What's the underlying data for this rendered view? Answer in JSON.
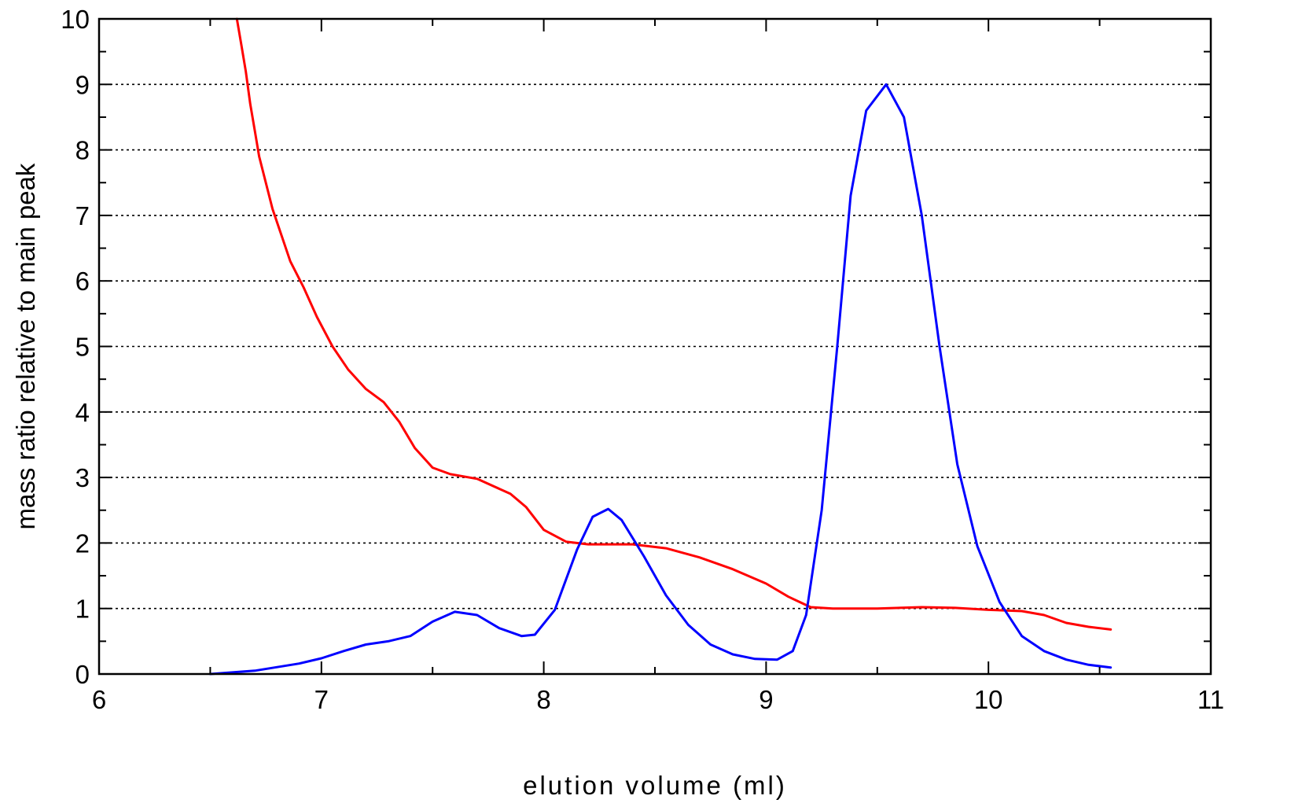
{
  "chart_data": {
    "type": "line",
    "title": "",
    "xlabel": "elution volume (ml)",
    "ylabel": "mass ratio relative to main peak",
    "xlim": [
      6,
      11
    ],
    "ylim": [
      0,
      10
    ],
    "xticks": [
      "6",
      "7",
      "8",
      "9",
      "10",
      "11"
    ],
    "yticks": [
      "0",
      "1",
      "2",
      "3",
      "4",
      "5",
      "6",
      "7",
      "8",
      "9",
      "10"
    ],
    "grid": "horizontal dotted",
    "legend": "none",
    "series": [
      {
        "color": "#ff0000",
        "points": [
          [
            6.62,
            10.0
          ],
          [
            6.64,
            9.6
          ],
          [
            6.66,
            9.2
          ],
          [
            6.68,
            8.7
          ],
          [
            6.7,
            8.3
          ],
          [
            6.72,
            7.9
          ],
          [
            6.75,
            7.5
          ],
          [
            6.78,
            7.1
          ],
          [
            6.82,
            6.7
          ],
          [
            6.86,
            6.3
          ],
          [
            6.92,
            5.9
          ],
          [
            6.98,
            5.45
          ],
          [
            7.05,
            5.0
          ],
          [
            7.12,
            4.65
          ],
          [
            7.2,
            4.35
          ],
          [
            7.28,
            4.15
          ],
          [
            7.35,
            3.85
          ],
          [
            7.42,
            3.45
          ],
          [
            7.5,
            3.15
          ],
          [
            7.58,
            3.05
          ],
          [
            7.7,
            2.98
          ],
          [
            7.85,
            2.75
          ],
          [
            7.92,
            2.55
          ],
          [
            8.0,
            2.2
          ],
          [
            8.1,
            2.02
          ],
          [
            8.2,
            1.98
          ],
          [
            8.4,
            1.98
          ],
          [
            8.55,
            1.92
          ],
          [
            8.7,
            1.78
          ],
          [
            8.85,
            1.6
          ],
          [
            9.0,
            1.38
          ],
          [
            9.1,
            1.18
          ],
          [
            9.2,
            1.02
          ],
          [
            9.3,
            1.0
          ],
          [
            9.5,
            1.0
          ],
          [
            9.7,
            1.02
          ],
          [
            9.85,
            1.01
          ],
          [
            10.0,
            0.98
          ],
          [
            10.15,
            0.96
          ],
          [
            10.25,
            0.9
          ],
          [
            10.35,
            0.78
          ],
          [
            10.45,
            0.72
          ],
          [
            10.55,
            0.68
          ]
        ]
      },
      {
        "color": "#0000ff",
        "points": [
          [
            6.5,
            0.0
          ],
          [
            6.7,
            0.05
          ],
          [
            6.9,
            0.16
          ],
          [
            7.0,
            0.24
          ],
          [
            7.1,
            0.35
          ],
          [
            7.2,
            0.45
          ],
          [
            7.3,
            0.5
          ],
          [
            7.4,
            0.58
          ],
          [
            7.5,
            0.8
          ],
          [
            7.6,
            0.95
          ],
          [
            7.7,
            0.9
          ],
          [
            7.8,
            0.7
          ],
          [
            7.9,
            0.58
          ],
          [
            7.96,
            0.6
          ],
          [
            8.05,
            0.98
          ],
          [
            8.15,
            1.9
          ],
          [
            8.22,
            2.4
          ],
          [
            8.29,
            2.52
          ],
          [
            8.35,
            2.35
          ],
          [
            8.45,
            1.8
          ],
          [
            8.55,
            1.2
          ],
          [
            8.65,
            0.75
          ],
          [
            8.75,
            0.45
          ],
          [
            8.85,
            0.3
          ],
          [
            8.95,
            0.23
          ],
          [
            9.05,
            0.22
          ],
          [
            9.12,
            0.35
          ],
          [
            9.18,
            0.9
          ],
          [
            9.25,
            2.5
          ],
          [
            9.32,
            5.0
          ],
          [
            9.38,
            7.3
          ],
          [
            9.45,
            8.6
          ],
          [
            9.54,
            9.0
          ],
          [
            9.62,
            8.5
          ],
          [
            9.7,
            7.0
          ],
          [
            9.78,
            5.0
          ],
          [
            9.86,
            3.2
          ],
          [
            9.95,
            1.95
          ],
          [
            10.05,
            1.1
          ],
          [
            10.15,
            0.58
          ],
          [
            10.25,
            0.35
          ],
          [
            10.35,
            0.22
          ],
          [
            10.45,
            0.14
          ],
          [
            10.55,
            0.1
          ]
        ]
      }
    ]
  }
}
